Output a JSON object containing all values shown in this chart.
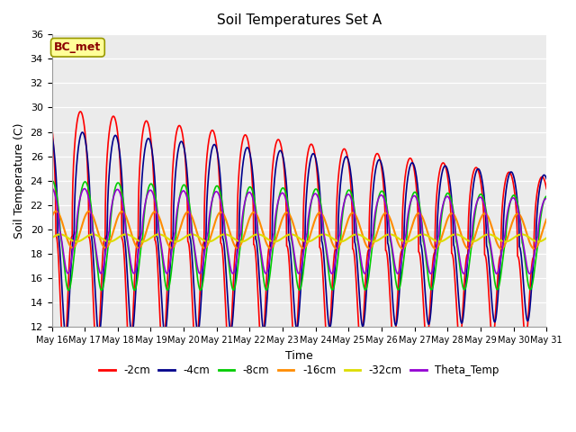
{
  "title": "Soil Temperatures Set A",
  "xlabel": "Time",
  "ylabel": "Soil Temperature (C)",
  "ylim": [
    12,
    36
  ],
  "yticks": [
    12,
    14,
    16,
    18,
    20,
    22,
    24,
    26,
    28,
    30,
    32,
    34,
    36
  ],
  "annotation": "BC_met",
  "annotation_color": "#8B0000",
  "annotation_bg": "#FFFF99",
  "bg_color": "#EBEBEB",
  "lines": {
    "-2cm": {
      "color": "#FF0000",
      "lw": 1.2
    },
    "-4cm": {
      "color": "#00008B",
      "lw": 1.2
    },
    "-8cm": {
      "color": "#00CC00",
      "lw": 1.2
    },
    "-16cm": {
      "color": "#FF8C00",
      "lw": 1.5
    },
    "-32cm": {
      "color": "#DDDD00",
      "lw": 1.5
    },
    "Theta_Temp": {
      "color": "#9400D3",
      "lw": 1.2
    }
  },
  "legend_order": [
    "-2cm",
    "-4cm",
    "-8cm",
    "-16cm",
    "-32cm",
    "Theta_Temp"
  ],
  "n_days": 15,
  "points_per_day": 144,
  "mean_temp": 19.5,
  "amplitudes": [
    10.5,
    8.5,
    4.5,
    1.5,
    0.3,
    3.5
  ],
  "phase_shifts": [
    0.62,
    0.68,
    0.76,
    0.88,
    1.0,
    0.74
  ],
  "skew": [
    2.5,
    2.0,
    1.5,
    1.0,
    1.0,
    1.5
  ],
  "trend": [
    -0.12,
    -0.08,
    -0.04,
    -0.01,
    0.0,
    -0.03
  ],
  "mean_offsets": [
    0.0,
    0.2,
    0.0,
    0.5,
    -0.2,
    0.4
  ],
  "amp_decay": [
    0.025,
    0.02,
    0.01,
    0.003,
    0.0,
    0.008
  ]
}
